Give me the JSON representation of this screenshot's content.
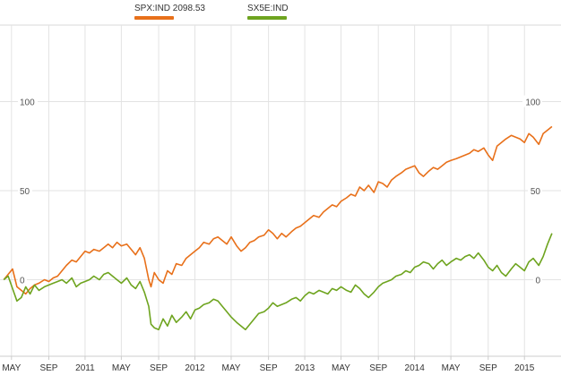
{
  "legend": {
    "placement": "top-center",
    "items": [
      {
        "name": "SPX:IND",
        "value": "2098.53",
        "color": "#e8701a"
      },
      {
        "name": "SX5E:IND",
        "value": "",
        "color": "#6ea41f"
      }
    ]
  },
  "chart_data": {
    "type": "line",
    "title": "",
    "xlabel": "",
    "ylabel": "",
    "ylim": [
      -43,
      143
    ],
    "xlim": [
      2010.25,
      2015.3
    ],
    "grid": true,
    "y_ticks_left": [
      "100",
      "50",
      "0"
    ],
    "y_ticks_right": [
      "100",
      "50",
      "0"
    ],
    "y_tick_values": [
      100,
      50,
      0
    ],
    "x_ticks": [
      {
        "label": "MAY",
        "x": 2010.33
      },
      {
        "label": "SEP",
        "x": 2010.67
      },
      {
        "label": "2011",
        "x": 2011.0
      },
      {
        "label": "MAY",
        "x": 2011.33
      },
      {
        "label": "SEP",
        "x": 2011.67
      },
      {
        "label": "2012",
        "x": 2012.0
      },
      {
        "label": "MAY",
        "x": 2012.33
      },
      {
        "label": "SEP",
        "x": 2012.67
      },
      {
        "label": "2013",
        "x": 2013.0
      },
      {
        "label": "MAY",
        "x": 2013.33
      },
      {
        "label": "SEP",
        "x": 2013.67
      },
      {
        "label": "2014",
        "x": 2014.0
      },
      {
        "label": "MAY",
        "x": 2014.33
      },
      {
        "label": "SEP",
        "x": 2014.67
      },
      {
        "label": "2015",
        "x": 2015.0
      }
    ],
    "series": [
      {
        "name": "SPX:IND",
        "color": "#e8701a",
        "x": [
          2010.26,
          2010.3,
          2010.34,
          2010.38,
          2010.42,
          2010.46,
          2010.5,
          2010.54,
          2010.58,
          2010.63,
          2010.67,
          2010.71,
          2010.75,
          2010.79,
          2010.83,
          2010.88,
          2010.92,
          2010.96,
          2011.0,
          2011.04,
          2011.08,
          2011.13,
          2011.17,
          2011.21,
          2011.25,
          2011.29,
          2011.33,
          2011.38,
          2011.42,
          2011.46,
          2011.5,
          2011.54,
          2011.58,
          2011.6,
          2011.63,
          2011.67,
          2011.71,
          2011.75,
          2011.79,
          2011.83,
          2011.88,
          2011.92,
          2011.96,
          2012.0,
          2012.04,
          2012.08,
          2012.13,
          2012.17,
          2012.21,
          2012.25,
          2012.29,
          2012.33,
          2012.38,
          2012.42,
          2012.46,
          2012.5,
          2012.54,
          2012.58,
          2012.63,
          2012.67,
          2012.71,
          2012.75,
          2012.79,
          2012.83,
          2012.88,
          2012.92,
          2012.96,
          2013.0,
          2013.04,
          2013.08,
          2013.13,
          2013.17,
          2013.21,
          2013.25,
          2013.29,
          2013.33,
          2013.38,
          2013.42,
          2013.46,
          2013.5,
          2013.54,
          2013.58,
          2013.63,
          2013.67,
          2013.71,
          2013.75,
          2013.79,
          2013.83,
          2013.88,
          2013.92,
          2013.96,
          2014.0,
          2014.04,
          2014.08,
          2014.13,
          2014.17,
          2014.21,
          2014.25,
          2014.29,
          2014.33,
          2014.38,
          2014.42,
          2014.46,
          2014.5,
          2014.54,
          2014.58,
          2014.63,
          2014.67,
          2014.71,
          2014.75,
          2014.79,
          2014.83,
          2014.88,
          2014.92,
          2014.96,
          2015.0,
          2015.04,
          2015.08,
          2015.13,
          2015.17,
          2015.21,
          2015.25
        ],
        "values": [
          0,
          3,
          6,
          -4,
          -6,
          -8,
          -5,
          -3,
          -2,
          0,
          -1,
          1,
          2,
          5,
          8,
          11,
          10,
          13,
          16,
          15,
          17,
          16,
          18,
          20,
          18,
          21,
          19,
          20,
          17,
          14,
          18,
          12,
          0,
          -4,
          4,
          0,
          -2,
          5,
          3,
          9,
          8,
          12,
          14,
          16,
          18,
          21,
          20,
          23,
          24,
          22,
          20,
          24,
          19,
          16,
          18,
          21,
          22,
          24,
          25,
          28,
          26,
          23,
          26,
          24,
          27,
          29,
          30,
          32,
          34,
          36,
          35,
          38,
          40,
          42,
          41,
          44,
          46,
          48,
          47,
          52,
          50,
          53,
          49,
          55,
          54,
          52,
          56,
          58,
          60,
          62,
          63,
          64,
          60,
          58,
          61,
          63,
          62,
          64,
          66,
          67,
          68,
          69,
          70,
          71,
          73,
          72,
          74,
          70,
          67,
          75,
          77,
          79,
          81,
          80,
          79,
          77,
          82,
          80,
          76,
          82,
          84,
          86
        ]
      },
      {
        "name": "SX5E:IND",
        "color": "#6ea41f",
        "x": [
          2010.26,
          2010.3,
          2010.34,
          2010.38,
          2010.42,
          2010.46,
          2010.5,
          2010.54,
          2010.58,
          2010.63,
          2010.67,
          2010.71,
          2010.75,
          2010.79,
          2010.83,
          2010.88,
          2010.92,
          2010.96,
          2011.0,
          2011.04,
          2011.08,
          2011.13,
          2011.17,
          2011.21,
          2011.25,
          2011.29,
          2011.33,
          2011.38,
          2011.42,
          2011.46,
          2011.5,
          2011.54,
          2011.58,
          2011.6,
          2011.63,
          2011.67,
          2011.71,
          2011.75,
          2011.79,
          2011.83,
          2011.88,
          2011.92,
          2011.96,
          2012.0,
          2012.04,
          2012.08,
          2012.13,
          2012.17,
          2012.21,
          2012.25,
          2012.29,
          2012.33,
          2012.38,
          2012.42,
          2012.46,
          2012.5,
          2012.54,
          2012.58,
          2012.63,
          2012.67,
          2012.71,
          2012.75,
          2012.79,
          2012.83,
          2012.88,
          2012.92,
          2012.96,
          2013.0,
          2013.04,
          2013.08,
          2013.13,
          2013.17,
          2013.21,
          2013.25,
          2013.29,
          2013.33,
          2013.38,
          2013.42,
          2013.46,
          2013.5,
          2013.54,
          2013.58,
          2013.63,
          2013.67,
          2013.71,
          2013.75,
          2013.79,
          2013.83,
          2013.88,
          2013.92,
          2013.96,
          2014.0,
          2014.04,
          2014.08,
          2014.13,
          2014.17,
          2014.21,
          2014.25,
          2014.29,
          2014.33,
          2014.38,
          2014.42,
          2014.46,
          2014.5,
          2014.54,
          2014.58,
          2014.63,
          2014.67,
          2014.71,
          2014.75,
          2014.79,
          2014.83,
          2014.88,
          2014.92,
          2014.96,
          2015.0,
          2015.04,
          2015.08,
          2015.13,
          2015.17,
          2015.21,
          2015.25
        ],
        "values": [
          0,
          2,
          -5,
          -12,
          -10,
          -4,
          -8,
          -3,
          -6,
          -4,
          -3,
          -2,
          -1,
          0,
          -2,
          1,
          -4,
          -2,
          -1,
          0,
          2,
          0,
          3,
          4,
          2,
          0,
          -2,
          1,
          -3,
          -5,
          -1,
          -7,
          -15,
          -25,
          -27,
          -28,
          -22,
          -26,
          -20,
          -24,
          -21,
          -18,
          -22,
          -17,
          -16,
          -14,
          -13,
          -11,
          -12,
          -15,
          -18,
          -21,
          -24,
          -26,
          -28,
          -25,
          -22,
          -19,
          -18,
          -16,
          -13,
          -15,
          -14,
          -13,
          -11,
          -10,
          -12,
          -9,
          -7,
          -8,
          -6,
          -7,
          -8,
          -5,
          -6,
          -4,
          -6,
          -7,
          -3,
          -5,
          -8,
          -10,
          -7,
          -4,
          -2,
          -1,
          0,
          2,
          3,
          5,
          4,
          7,
          8,
          10,
          9,
          6,
          9,
          11,
          8,
          10,
          12,
          11,
          13,
          14,
          12,
          15,
          11,
          7,
          5,
          8,
          4,
          2,
          6,
          9,
          7,
          5,
          10,
          12,
          8,
          13,
          20,
          26
        ]
      }
    ]
  }
}
